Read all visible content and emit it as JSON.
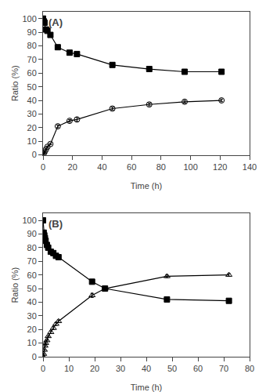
{
  "chart_data": [
    {
      "type": "line",
      "annotations": [
        "(A)"
      ],
      "x": [
        0,
        0.5,
        1,
        2,
        3,
        5,
        10,
        18,
        23,
        47,
        72,
        96,
        121
      ],
      "series": [
        {
          "values": [
            100,
            98,
            97,
            92,
            91,
            88,
            79,
            75,
            74,
            66,
            63,
            61,
            61
          ],
          "errors": [
            0,
            0.5,
            0.5,
            1,
            1,
            1,
            1,
            1.5,
            1.5,
            1,
            1,
            1.5,
            1
          ],
          "marker": "square",
          "color": "#000000"
        },
        {
          "values": [
            0,
            1,
            2,
            4,
            6,
            8,
            21,
            25,
            26,
            34,
            37,
            39,
            40
          ],
          "errors": [
            0,
            0.5,
            0.5,
            0.5,
            0.5,
            0.5,
            1,
            1,
            1.5,
            1,
            1,
            1,
            1
          ],
          "marker": "circle-open",
          "color": "#000000"
        }
      ],
      "xlabel": "Time (h)",
      "ylabel": "Ratio (%)",
      "xlim": [
        0,
        140
      ],
      "xticks": [
        0,
        20,
        40,
        60,
        80,
        100,
        120,
        140
      ],
      "ylim": [
        0,
        105
      ],
      "yticks": [
        0,
        10,
        20,
        30,
        40,
        50,
        60,
        70,
        80,
        90,
        100
      ],
      "grid": false
    },
    {
      "type": "line",
      "annotations": [
        "(B)"
      ],
      "x": [
        0,
        0.25,
        0.5,
        0.75,
        1,
        1.5,
        2,
        3,
        4,
        5,
        6,
        19,
        24,
        48,
        72
      ],
      "series": [
        {
          "values": [
            100,
            91,
            89,
            87,
            85,
            82,
            80,
            77,
            76,
            74,
            73,
            55,
            50,
            42,
            41
          ],
          "errors": [
            0,
            1,
            1,
            1,
            1,
            1,
            1,
            1,
            1,
            1,
            1,
            1.5,
            1.5,
            1,
            1
          ],
          "marker": "square",
          "color": "#000000"
        },
        {
          "values": [
            0,
            2,
            5,
            8,
            10,
            12,
            15,
            18,
            21,
            24,
            26,
            45,
            50,
            59,
            60
          ],
          "errors": [
            0,
            0.5,
            0.5,
            0.5,
            0.5,
            0.5,
            0.5,
            1,
            1,
            1,
            1,
            1.5,
            1.5,
            1,
            1
          ],
          "marker": "triangle-up-open",
          "color": "#000000"
        }
      ],
      "xlabel": "Time (h)",
      "ylabel": "Ratio (%)",
      "xlim": [
        0,
        80
      ],
      "xticks": [
        0,
        10,
        20,
        30,
        40,
        50,
        60,
        70,
        80
      ],
      "ylim": [
        0,
        105
      ],
      "yticks": [
        0,
        10,
        20,
        30,
        40,
        50,
        60,
        70,
        80,
        90,
        100
      ],
      "grid": false
    }
  ]
}
